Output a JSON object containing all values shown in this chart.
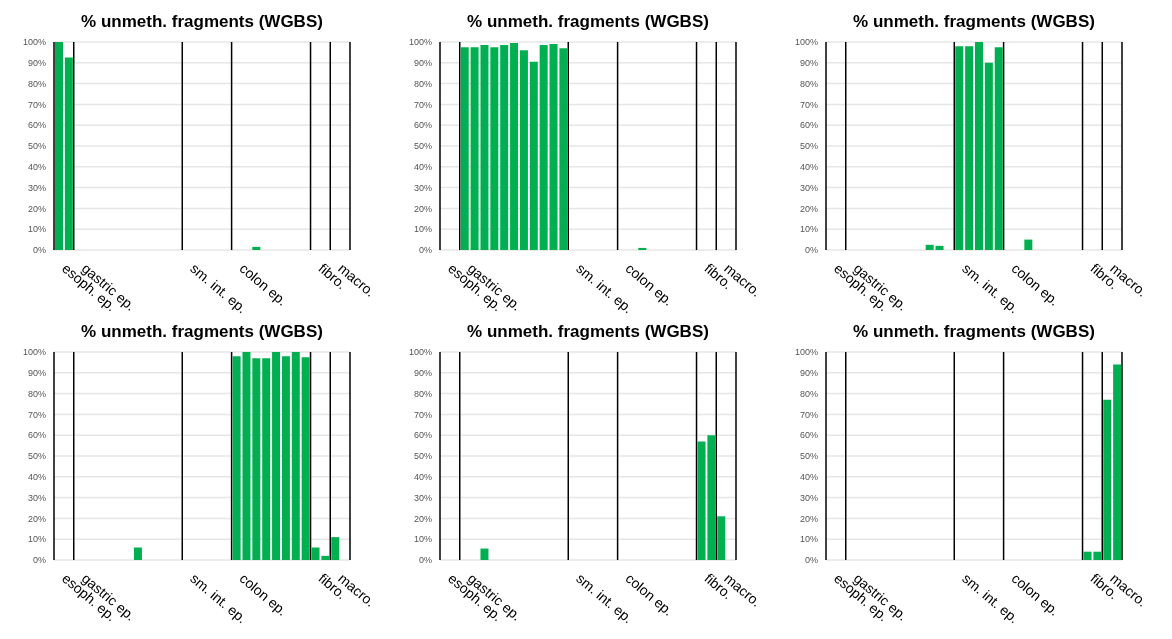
{
  "chart_data": [
    {
      "type": "bar",
      "title": "% unmeth. fragments (WGBS)",
      "categories": [
        "esoph. ep.",
        null,
        "gastric ep.",
        null,
        null,
        null,
        null,
        null,
        null,
        null,
        null,
        null,
        null,
        "sm. int. ep.",
        null,
        null,
        null,
        null,
        "colon ep.",
        null,
        null,
        null,
        null,
        null,
        null,
        null,
        "fibro.",
        null,
        "macro.",
        null
      ],
      "values": [
        100,
        92.5,
        null,
        null,
        null,
        null,
        null,
        null,
        null,
        null,
        null,
        null,
        null,
        null,
        null,
        null,
        null,
        null,
        null,
        null,
        1.5,
        null,
        null,
        null,
        null,
        null,
        null,
        null,
        null,
        null
      ],
      "color": "#00b050",
      "ylim": [
        0,
        100
      ],
      "yticks": [
        {
          "value": 0,
          "label": "0%"
        },
        {
          "value": 10,
          "label": "10%"
        },
        {
          "value": 20,
          "label": "20%"
        },
        {
          "value": 30,
          "label": "30%"
        },
        {
          "value": 40,
          "label": "40%"
        },
        {
          "value": 50,
          "label": "50%"
        },
        {
          "value": 60,
          "label": "60%"
        },
        {
          "value": 70,
          "label": "70%"
        },
        {
          "value": 80,
          "label": "80%"
        },
        {
          "value": 90,
          "label": "90%"
        },
        {
          "value": 100,
          "label": "100%"
        }
      ],
      "grid": true
    },
    {
      "type": "bar",
      "title": "% unmeth. fragments (WGBS)",
      "categories": [
        "esoph. ep.",
        null,
        "gastric ep.",
        null,
        null,
        null,
        null,
        null,
        null,
        null,
        null,
        null,
        null,
        "sm. int. ep.",
        null,
        null,
        null,
        null,
        "colon ep.",
        null,
        null,
        null,
        null,
        null,
        null,
        null,
        "fibro.",
        null,
        "macro.",
        null
      ],
      "values": [
        null,
        null,
        97.5,
        97.5,
        98.5,
        97.5,
        98.5,
        99.5,
        96,
        90.5,
        98.5,
        99,
        97,
        null,
        null,
        null,
        null,
        null,
        null,
        null,
        1,
        null,
        null,
        null,
        null,
        null,
        null,
        null,
        null,
        null
      ],
      "color": "#00b050",
      "ylim": [
        0,
        100
      ],
      "yticks": [
        {
          "value": 0,
          "label": "0%"
        },
        {
          "value": 10,
          "label": "10%"
        },
        {
          "value": 20,
          "label": "20%"
        },
        {
          "value": 30,
          "label": "30%"
        },
        {
          "value": 40,
          "label": "40%"
        },
        {
          "value": 50,
          "label": "50%"
        },
        {
          "value": 60,
          "label": "60%"
        },
        {
          "value": 70,
          "label": "70%"
        },
        {
          "value": 80,
          "label": "80%"
        },
        {
          "value": 90,
          "label": "90%"
        },
        {
          "value": 100,
          "label": "100%"
        }
      ],
      "grid": true
    },
    {
      "type": "bar",
      "title": "% unmeth. fragments (WGBS)",
      "categories": [
        "esoph. ep.",
        null,
        "gastric ep.",
        null,
        null,
        null,
        null,
        null,
        null,
        null,
        null,
        null,
        null,
        "sm. int. ep.",
        null,
        null,
        null,
        null,
        "colon ep.",
        null,
        null,
        null,
        null,
        null,
        null,
        null,
        "fibro.",
        null,
        "macro.",
        null
      ],
      "values": [
        null,
        null,
        null,
        null,
        null,
        null,
        null,
        null,
        null,
        null,
        2.5,
        2,
        null,
        98,
        98,
        100,
        90,
        97.5,
        null,
        null,
        5,
        null,
        null,
        null,
        null,
        null,
        null,
        null,
        null,
        null
      ],
      "color": "#00b050",
      "ylim": [
        0,
        100
      ],
      "yticks": [
        {
          "value": 0,
          "label": "0%"
        },
        {
          "value": 10,
          "label": "10%"
        },
        {
          "value": 20,
          "label": "20%"
        },
        {
          "value": 30,
          "label": "30%"
        },
        {
          "value": 40,
          "label": "40%"
        },
        {
          "value": 50,
          "label": "50%"
        },
        {
          "value": 60,
          "label": "60%"
        },
        {
          "value": 70,
          "label": "70%"
        },
        {
          "value": 80,
          "label": "80%"
        },
        {
          "value": 90,
          "label": "90%"
        },
        {
          "value": 100,
          "label": "100%"
        }
      ],
      "grid": true
    },
    {
      "type": "bar",
      "title": "% unmeth. fragments (WGBS)",
      "categories": [
        "esoph. ep.",
        null,
        "gastric ep.",
        null,
        null,
        null,
        null,
        null,
        null,
        null,
        null,
        null,
        null,
        "sm. int. ep.",
        null,
        null,
        null,
        null,
        "colon ep.",
        null,
        null,
        null,
        null,
        null,
        null,
        null,
        "fibro.",
        null,
        "macro.",
        null
      ],
      "values": [
        null,
        null,
        null,
        null,
        null,
        null,
        null,
        null,
        6,
        null,
        null,
        null,
        null,
        null,
        null,
        null,
        null,
        null,
        98,
        100,
        97,
        97,
        100,
        98,
        100,
        97.5,
        6,
        2,
        11,
        null
      ],
      "color": "#00b050",
      "ylim": [
        0,
        100
      ],
      "yticks": [
        {
          "value": 0,
          "label": "0%"
        },
        {
          "value": 10,
          "label": "10%"
        },
        {
          "value": 20,
          "label": "20%"
        },
        {
          "value": 30,
          "label": "30%"
        },
        {
          "value": 40,
          "label": "40%"
        },
        {
          "value": 50,
          "label": "50%"
        },
        {
          "value": 60,
          "label": "60%"
        },
        {
          "value": 70,
          "label": "70%"
        },
        {
          "value": 80,
          "label": "80%"
        },
        {
          "value": 90,
          "label": "90%"
        },
        {
          "value": 100,
          "label": "100%"
        }
      ],
      "grid": true
    },
    {
      "type": "bar",
      "title": "% unmeth. fragments (WGBS)",
      "categories": [
        "esoph. ep.",
        null,
        "gastric ep.",
        null,
        null,
        null,
        null,
        null,
        null,
        null,
        null,
        null,
        null,
        "sm. int. ep.",
        null,
        null,
        null,
        null,
        "colon ep.",
        null,
        null,
        null,
        null,
        null,
        null,
        null,
        "fibro.",
        null,
        "macro.",
        null
      ],
      "values": [
        null,
        null,
        null,
        null,
        5.5,
        null,
        null,
        null,
        null,
        null,
        null,
        null,
        null,
        null,
        null,
        null,
        null,
        null,
        null,
        null,
        null,
        null,
        null,
        null,
        null,
        null,
        57,
        60,
        21,
        null
      ],
      "color": "#00b050",
      "ylim": [
        0,
        100
      ],
      "yticks": [
        {
          "value": 0,
          "label": "0%"
        },
        {
          "value": 10,
          "label": "10%"
        },
        {
          "value": 20,
          "label": "20%"
        },
        {
          "value": 30,
          "label": "30%"
        },
        {
          "value": 40,
          "label": "40%"
        },
        {
          "value": 50,
          "label": "50%"
        },
        {
          "value": 60,
          "label": "60%"
        },
        {
          "value": 70,
          "label": "70%"
        },
        {
          "value": 80,
          "label": "80%"
        },
        {
          "value": 90,
          "label": "90%"
        },
        {
          "value": 100,
          "label": "100%"
        }
      ],
      "grid": true
    },
    {
      "type": "bar",
      "title": "% unmeth. fragments (WGBS)",
      "categories": [
        "esoph. ep.",
        null,
        "gastric ep.",
        null,
        null,
        null,
        null,
        null,
        null,
        null,
        null,
        null,
        null,
        "sm. int. ep.",
        null,
        null,
        null,
        null,
        "colon ep.",
        null,
        null,
        null,
        null,
        null,
        null,
        null,
        "fibro.",
        null,
        "macro.",
        null
      ],
      "values": [
        null,
        null,
        null,
        null,
        null,
        null,
        null,
        null,
        null,
        null,
        null,
        null,
        null,
        null,
        null,
        null,
        null,
        null,
        null,
        null,
        null,
        null,
        null,
        null,
        null,
        null,
        4,
        4,
        77,
        94
      ],
      "color": "#00b050",
      "ylim": [
        0,
        100
      ],
      "yticks": [
        {
          "value": 0,
          "label": "0%"
        },
        {
          "value": 10,
          "label": "10%"
        },
        {
          "value": 20,
          "label": "20%"
        },
        {
          "value": 30,
          "label": "30%"
        },
        {
          "value": 40,
          "label": "40%"
        },
        {
          "value": 50,
          "label": "50%"
        },
        {
          "value": 60,
          "label": "60%"
        },
        {
          "value": 70,
          "label": "70%"
        },
        {
          "value": 80,
          "label": "80%"
        },
        {
          "value": 90,
          "label": "90%"
        },
        {
          "value": 100,
          "label": "100%"
        }
      ],
      "grid": true
    }
  ]
}
